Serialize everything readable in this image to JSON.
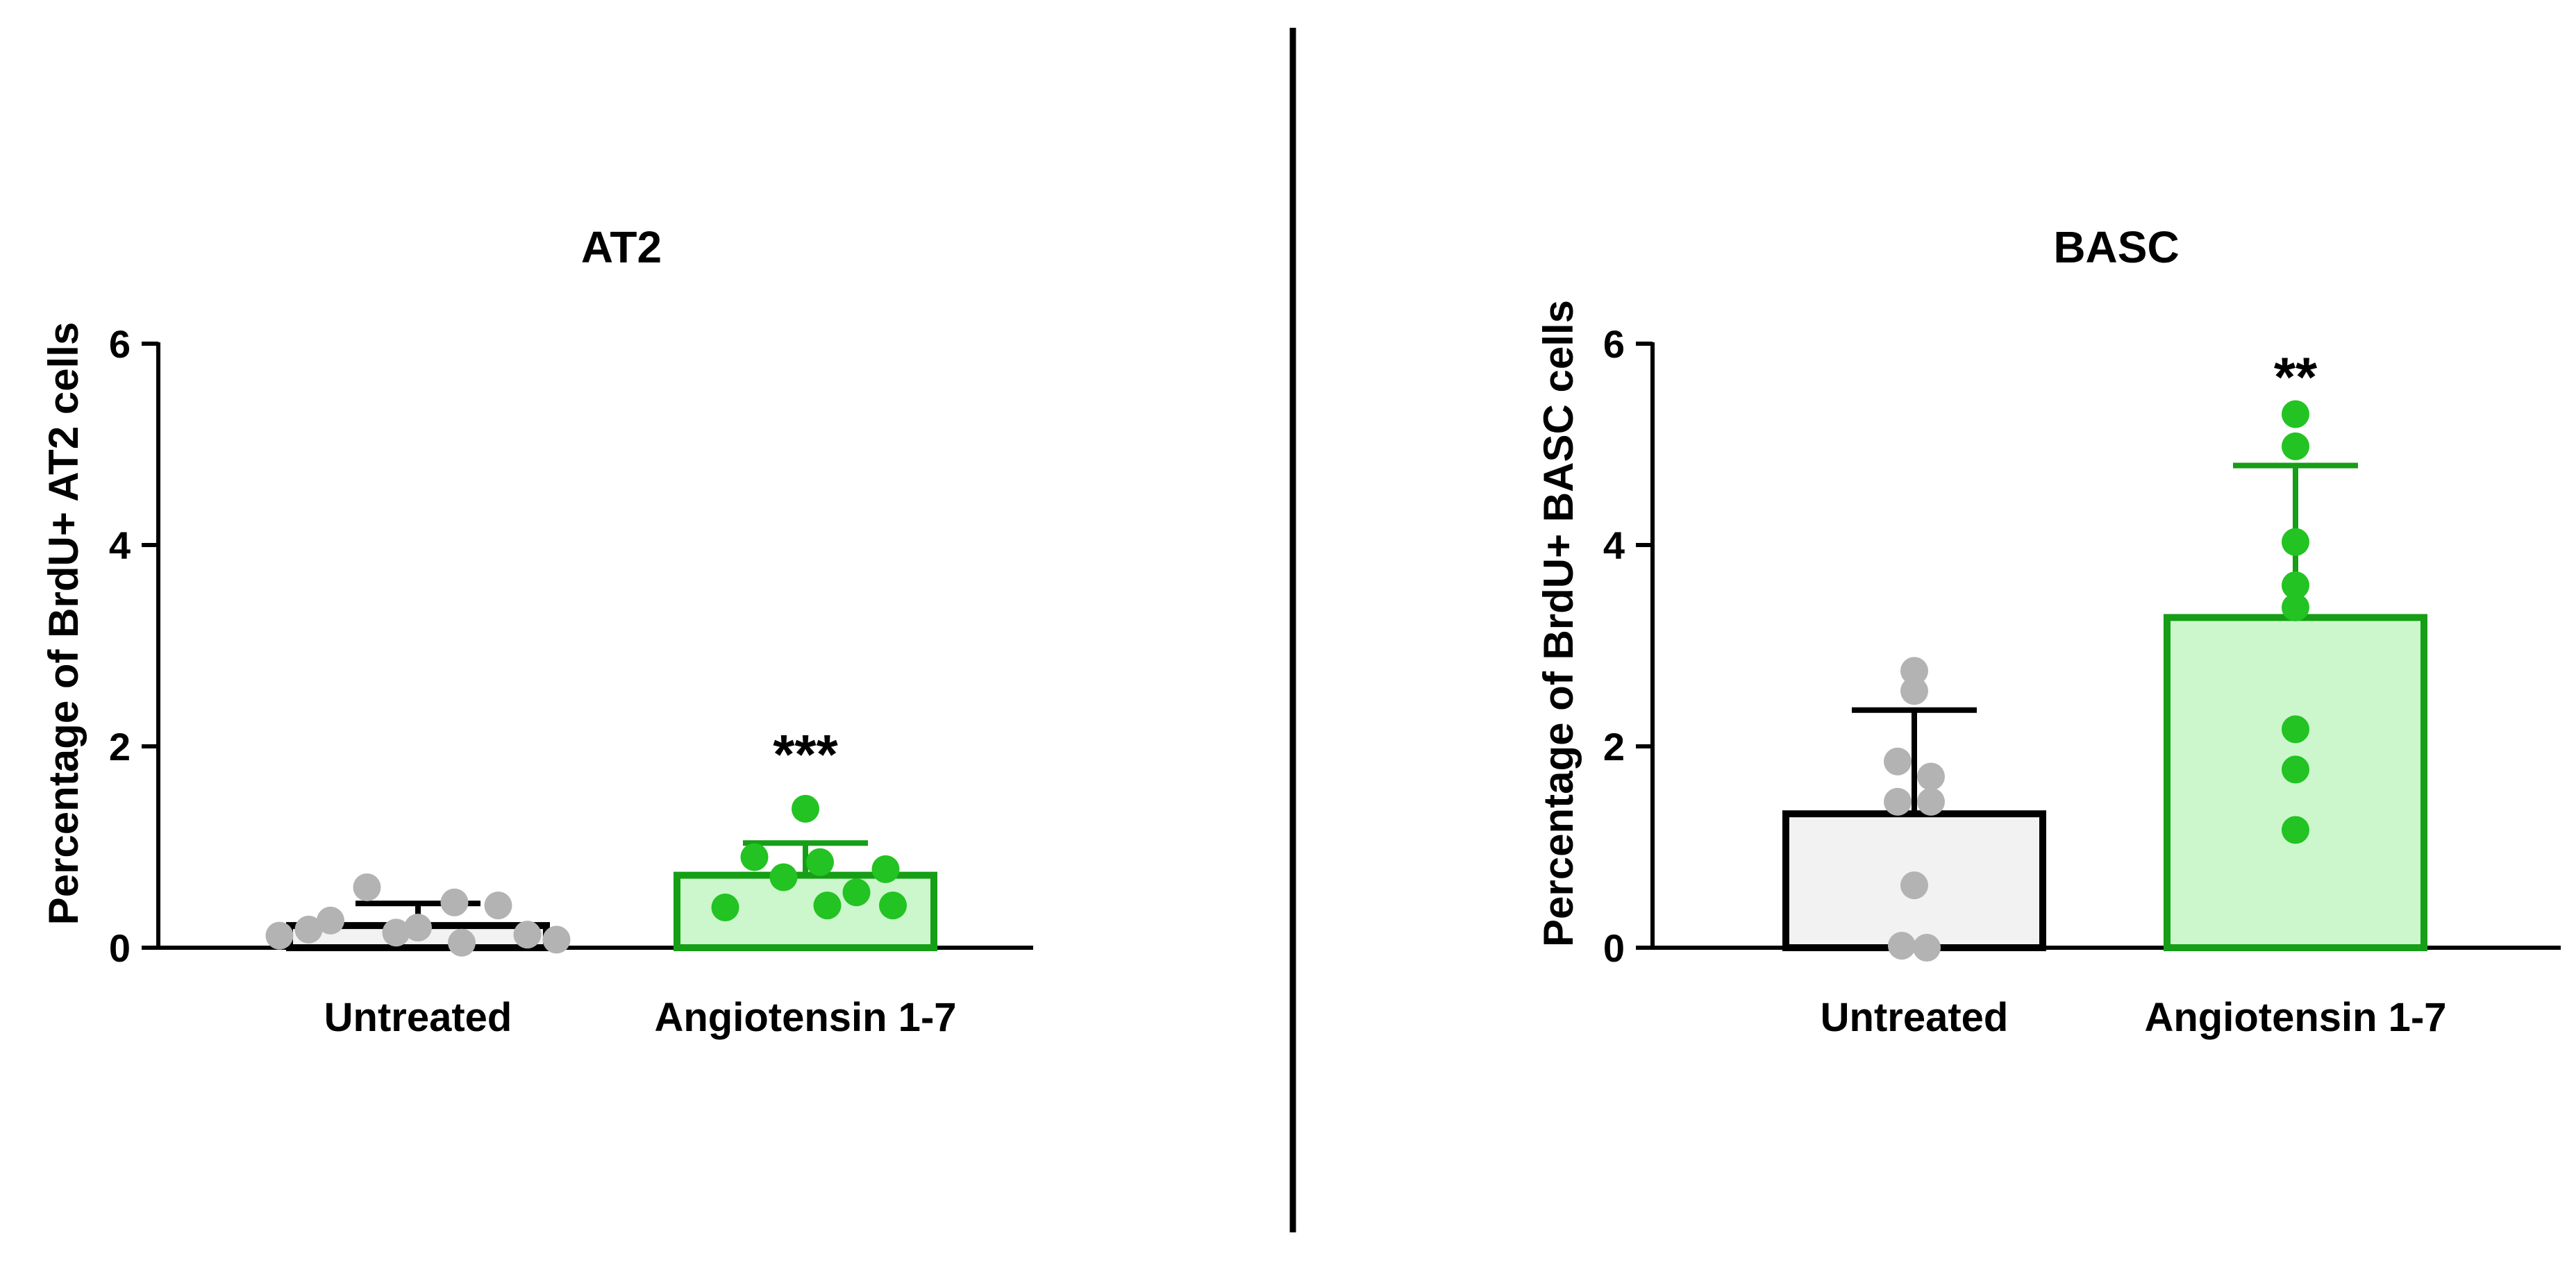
{
  "chart_data": [
    {
      "type": "bar",
      "title": "AT2",
      "ylabel": "Percentage of BrdU+ AT2 cells",
      "xlabel": "",
      "ylim": [
        0,
        6
      ],
      "yticks": [
        "0",
        "2",
        "4",
        "6"
      ],
      "categories": [
        "Untreated",
        "Angiotensin 1-7"
      ],
      "values": [
        0.22,
        0.72
      ],
      "errors": [
        0.22,
        0.32
      ],
      "points": [
        [
          0.12,
          0.18,
          0.27,
          0.6,
          0.15,
          0.2,
          0.45,
          0.05,
          0.42,
          0.13,
          0.08
        ],
        [
          1.38,
          0.9,
          0.7,
          0.85,
          0.78,
          0.4,
          0.42,
          0.42,
          0.55
        ]
      ],
      "significance": [
        "",
        "***"
      ],
      "bar_fill_colors": [
        "#f2f2f2",
        "#ccf7cc"
      ],
      "bar_edge_colors": [
        "#000000",
        "#169e16"
      ],
      "point_colors": [
        "#b3b3b3",
        "#22c322"
      ]
    },
    {
      "type": "bar",
      "title": "BASC",
      "ylabel": "Percentage of BrdU+ BASC cells",
      "xlabel": "",
      "ylim": [
        0,
        6
      ],
      "yticks": [
        "0",
        "2",
        "4",
        "6"
      ],
      "categories": [
        "Untreated",
        "Angiotensin 1-7"
      ],
      "values": [
        1.33,
        3.28
      ],
      "errors": [
        1.03,
        1.51
      ],
      "points": [
        [
          2.75,
          2.55,
          1.85,
          1.7,
          1.45,
          1.45,
          0.62,
          0.02,
          0.0
        ],
        [
          5.3,
          4.98,
          4.03,
          3.6,
          3.38,
          2.17,
          1.77,
          1.17
        ]
      ],
      "significance": [
        "",
        "**"
      ],
      "bar_fill_colors": [
        "#f2f2f2",
        "#ccf7cc"
      ],
      "bar_edge_colors": [
        "#000000",
        "#169e16"
      ],
      "point_colors": [
        "#b3b3b3",
        "#22c322"
      ]
    }
  ]
}
